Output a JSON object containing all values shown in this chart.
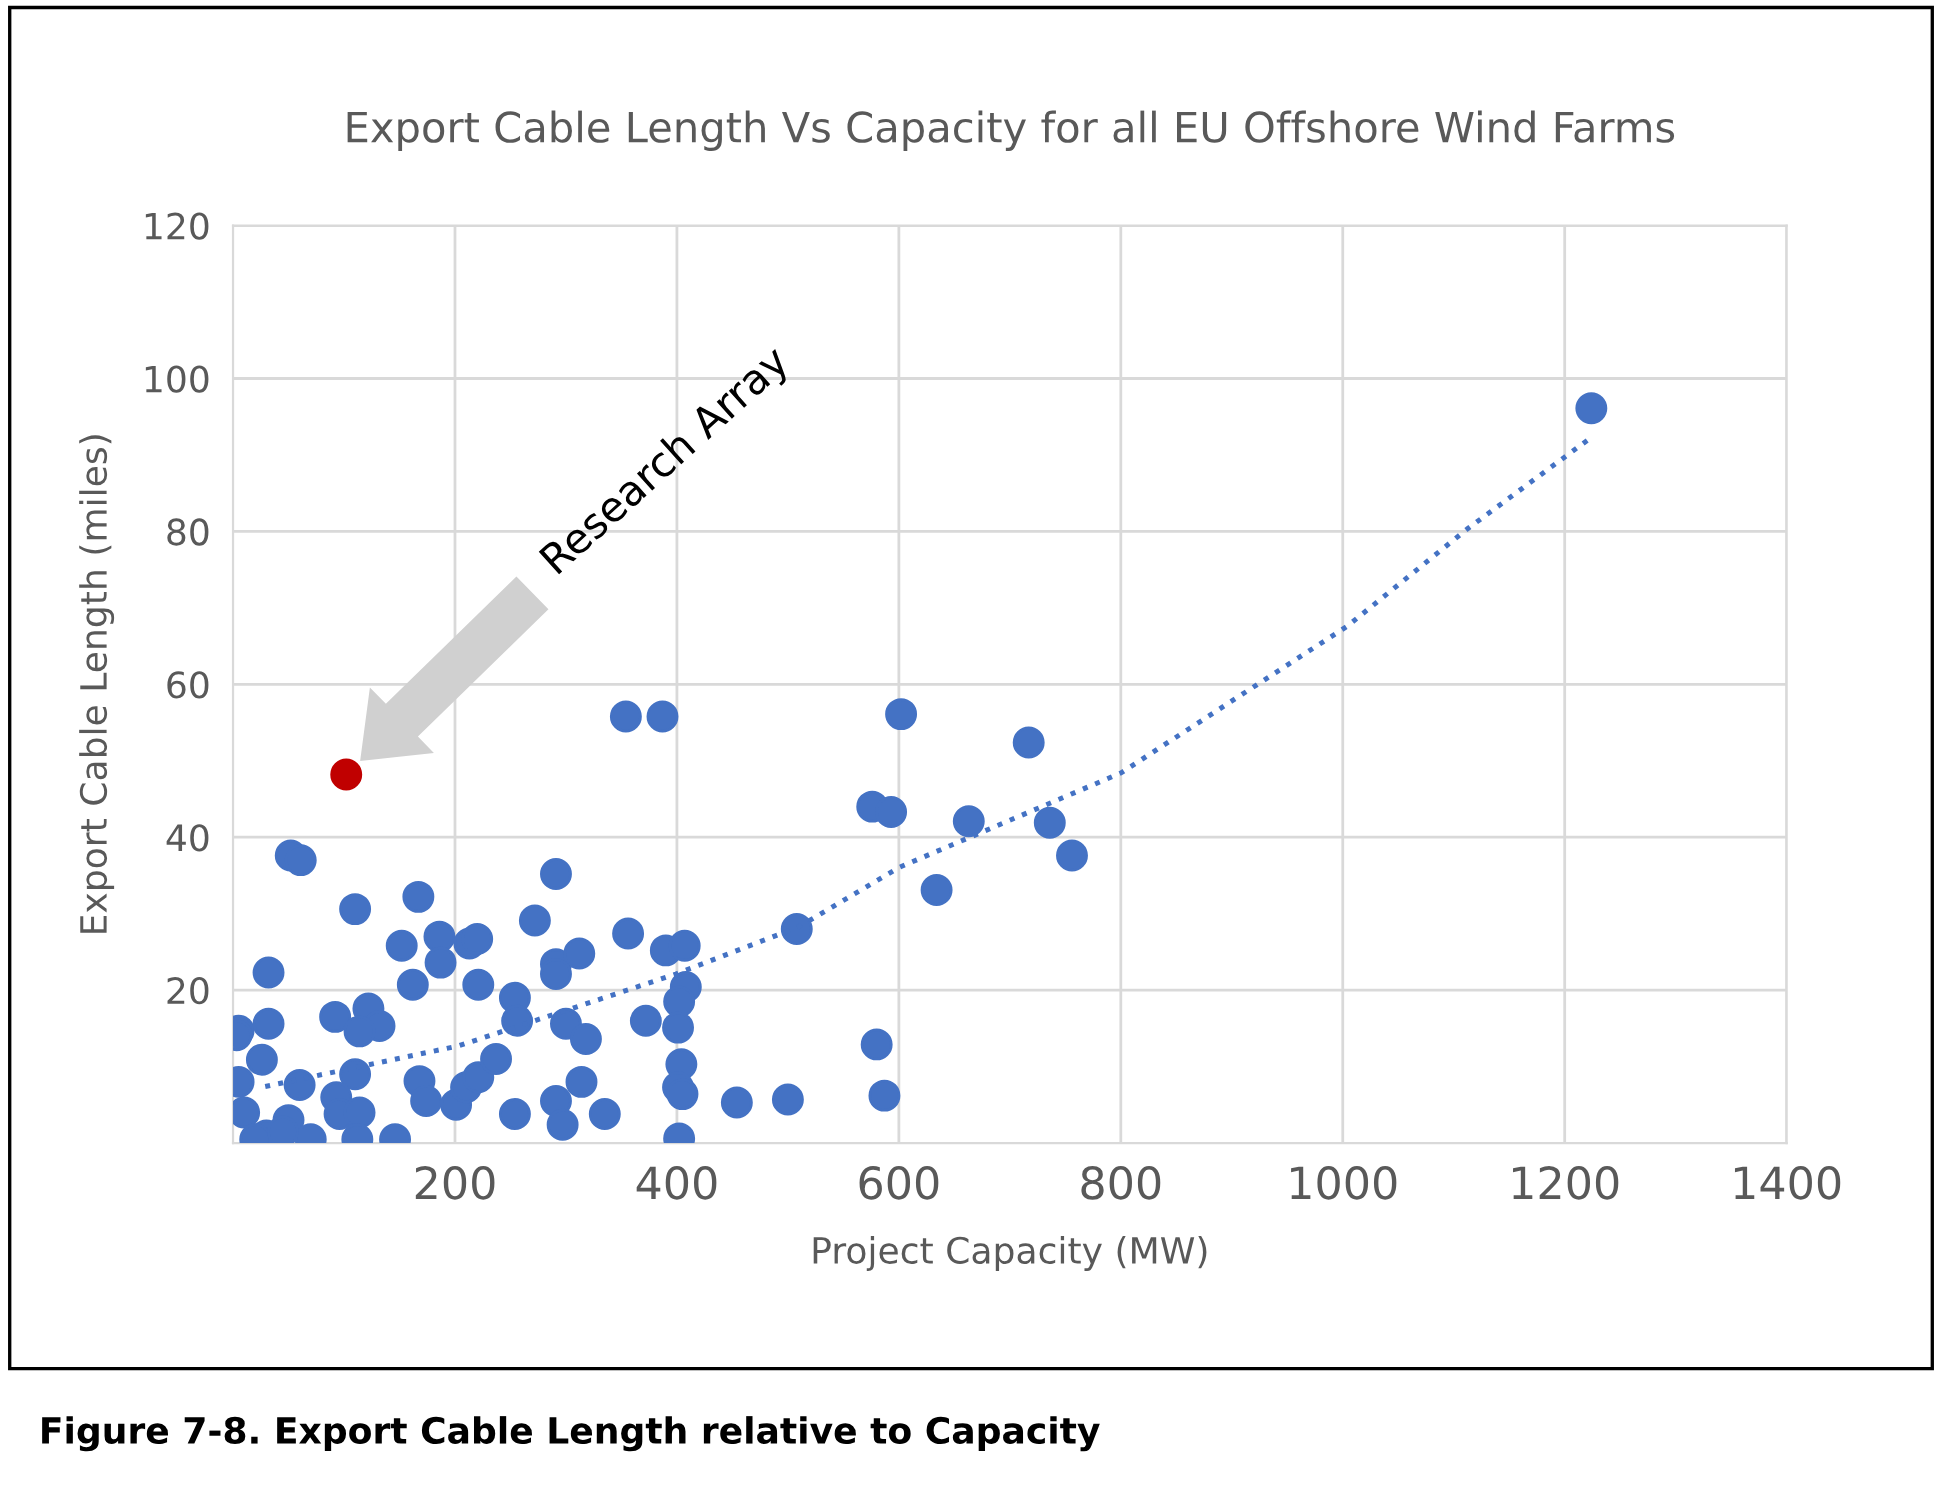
{
  "chart_data": {
    "type": "scatter",
    "title": "Export Cable Length Vs Capacity for all EU Offshore Wind Farms",
    "xlabel": "Project Capacity (MW)",
    "ylabel": "Export Cable Length (miles)",
    "xlim": [
      0,
      1400
    ],
    "xticks": [
      200,
      400,
      600,
      800,
      1000,
      1200,
      1400
    ],
    "ylim": [
      0,
      120
    ],
    "yticks": [
      20,
      40,
      60,
      80,
      100,
      120
    ],
    "grid": true,
    "marker": "circle",
    "series": [
      {
        "color": "#4472c4",
        "x": [
          52,
          61,
          110,
          167,
          32,
          152,
          186,
          187,
          213,
          220,
          162,
          221,
          5,
          3,
          32,
          92,
          122,
          132,
          114,
          26,
          110,
          5,
          60,
          93,
          96,
          114,
          112,
          146,
          168,
          174,
          201,
          210,
          221,
          237,
          254,
          256,
          254,
          272,
          291,
          291,
          312,
          291,
          300,
          318,
          314,
          291,
          297,
          335,
          354,
          387,
          356,
          372,
          390,
          407,
          408,
          402,
          401,
          404,
          401,
          405,
          402,
          454,
          500,
          508,
          580,
          587,
          576,
          593,
          602,
          663,
          634,
          717,
          736,
          756,
          1224,
          10,
          30,
          50,
          70,
          20,
          45
        ],
        "values": [
          37.6,
          37.0,
          30.6,
          32.2,
          22.3,
          25.8,
          27.0,
          23.6,
          26.1,
          26.7,
          20.7,
          20.7,
          14.7,
          14.1,
          15.6,
          16.5,
          17.6,
          15.3,
          14.6,
          10.9,
          9.0,
          8.0,
          7.6,
          6.0,
          3.8,
          4.0,
          0.5,
          0.5,
          8.1,
          5.5,
          5.0,
          7.3,
          8.6,
          11.0,
          19.0,
          16.0,
          3.8,
          29.1,
          35.2,
          23.4,
          24.8,
          22.1,
          15.6,
          13.6,
          8.0,
          5.5,
          2.4,
          3.8,
          55.8,
          55.8,
          27.4,
          16.0,
          25.2,
          25.8,
          20.4,
          18.5,
          15.1,
          10.3,
          7.3,
          6.4,
          0.6,
          5.3,
          5.7,
          28.0,
          12.9,
          6.2,
          44.0,
          43.3,
          56.1,
          42.1,
          33.1,
          52.4,
          41.9,
          37.6,
          96.1,
          4,
          1,
          3,
          0.5,
          0.5,
          1.5
        ]
      },
      {
        "color": "#c00000",
        "x": [
          102
        ],
        "values": [
          48.2
        ]
      },
      {
        "type": "line",
        "color": "#4472c4",
        "line_style": "dotted",
        "marker": "none",
        "x": [
          29,
          203,
          399,
          510,
          601,
          800,
          1004,
          1112,
          1224
        ],
        "values": [
          7.4,
          12.7,
          22.1,
          28.3,
          36.1,
          48.4,
          67.6,
          80.3,
          92.3
        ]
      }
    ],
    "annotations": [
      "Research Array",
      "Figure 7-8. Export Cable Length relative to Capacity"
    ]
  }
}
